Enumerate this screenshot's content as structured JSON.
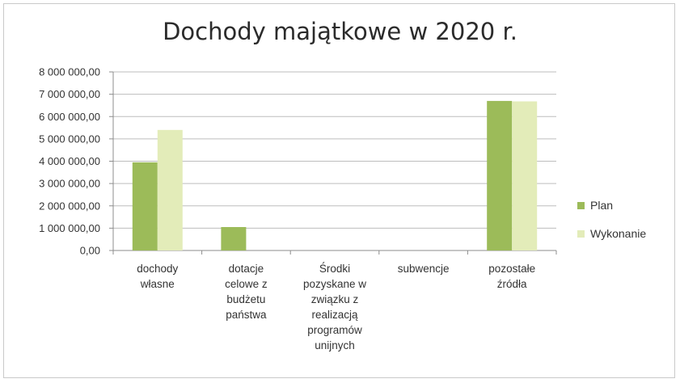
{
  "chart_data": {
    "type": "bar",
    "title": "Dochody majątkowe w 2020 r.",
    "xlabel": "",
    "ylabel": "",
    "ylim": [
      0,
      8000000
    ],
    "ytick_labels": [
      "0,00",
      "1 000 000,00",
      "2 000 000,00",
      "3 000 000,00",
      "4 000 000,00",
      "5 000 000,00",
      "6 000 000,00",
      "7 000 000,00",
      "8 000 000,00"
    ],
    "grid": true,
    "legend_position": "right",
    "categories": [
      [
        "dochody",
        "własne"
      ],
      [
        "dotacje",
        "celowe z",
        "budżetu",
        "państwa"
      ],
      [
        "Środki",
        "pozyskane w",
        "związku z",
        "realizacją",
        "programów",
        "unijnych"
      ],
      [
        "subwencje"
      ],
      [
        "pozostałe",
        "źródła"
      ]
    ],
    "series": [
      {
        "name": "Plan",
        "color": "#9cbb59",
        "values": [
          3950000,
          1050000,
          0,
          0,
          6700000
        ]
      },
      {
        "name": "Wykonanie",
        "color": "#e3ecb9",
        "values": [
          5400000,
          0,
          0,
          0,
          6680000
        ]
      }
    ]
  }
}
